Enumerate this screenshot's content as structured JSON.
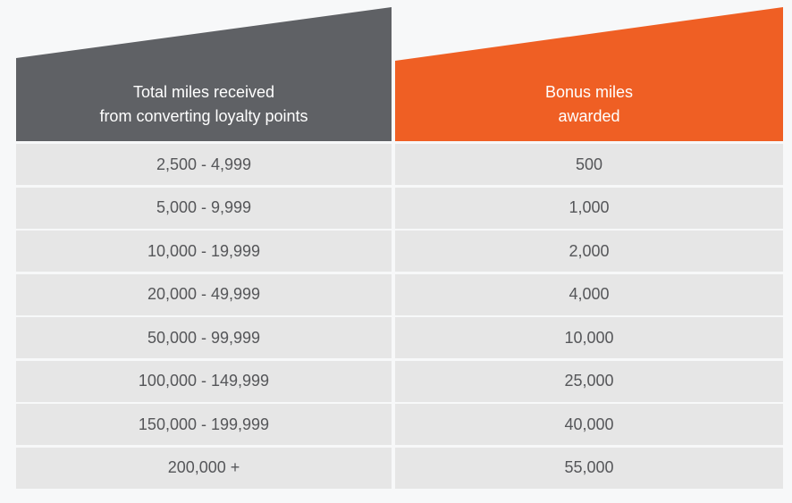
{
  "header": {
    "left_line1": "Total miles received",
    "left_line2": "from converting loyalty points",
    "right_line1": "Bonus miles",
    "right_line2": "awarded"
  },
  "colors": {
    "left_header": "#5f6165",
    "right_header": "#ef5f24",
    "row_background": "#e6e6e6",
    "text": "#555659"
  },
  "rows": [
    {
      "range": "2,500 - 4,999",
      "bonus": "500"
    },
    {
      "range": "5,000 - 9,999",
      "bonus": "1,000"
    },
    {
      "range": "10,000 - 19,999",
      "bonus": "2,000"
    },
    {
      "range": "20,000 - 49,999",
      "bonus": "4,000"
    },
    {
      "range": "50,000 - 99,999",
      "bonus": "10,000"
    },
    {
      "range": "100,000 - 149,999",
      "bonus": "25,000"
    },
    {
      "range": "150,000 - 199,999",
      "bonus": "40,000"
    },
    {
      "range": "200,000 +",
      "bonus": "55,000"
    }
  ]
}
